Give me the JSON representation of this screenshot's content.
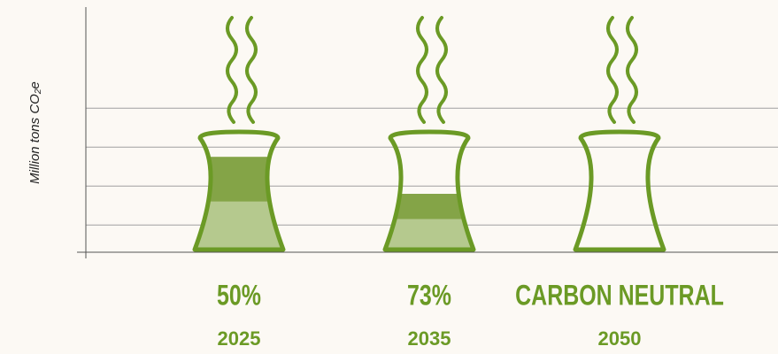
{
  "chart_data": {
    "type": "tower",
    "y_label": "Million tons CO₂e",
    "categories": [
      "2025",
      "2035",
      "2050"
    ],
    "annotations": [
      "50%",
      "73%",
      "CARBON NEUTRAL"
    ],
    "series": [
      {
        "color": "#b5c98e",
        "values": [
          1.3,
          0.85,
          0
        ]
      },
      {
        "color": "#84a447",
        "values": [
          1.15,
          0.65,
          0
        ]
      }
    ],
    "ylim": [
      0,
      6.25
    ],
    "yticks": [
      {
        "value": 0.7,
        "label": null
      },
      {
        "value": 1.7,
        "label": null
      },
      {
        "value": 2.7,
        "label": null
      },
      {
        "value": 3.7,
        "label": null
      }
    ],
    "grid": true,
    "outline_color": "#6b9a25"
  }
}
